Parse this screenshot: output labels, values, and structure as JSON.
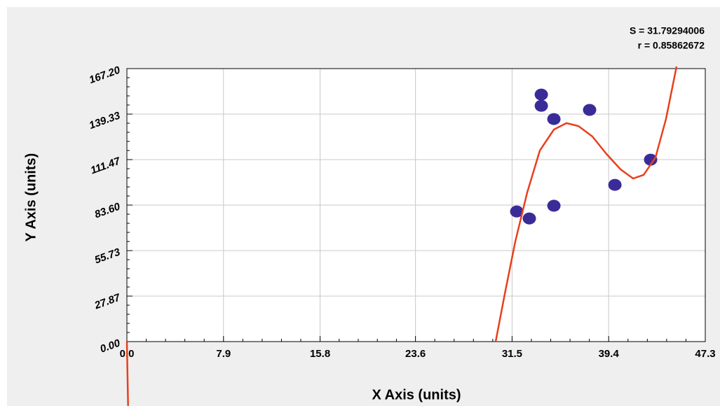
{
  "chart_data": {
    "type": "scatter",
    "annotations": [
      "S = 31.79294006",
      "r = 0.85862672"
    ],
    "x_label": "X Axis (units)",
    "y_label": "Y Axis (units)",
    "xlim": [
      0,
      47.3
    ],
    "ylim": [
      0,
      167.2
    ],
    "xticks": [
      {
        "value": 0,
        "label": "0.0"
      },
      7.9,
      15.8,
      23.6,
      31.5,
      39.4,
      47.3
    ],
    "yticks": [
      {
        "value": 0,
        "label": "0.00"
      },
      27.87,
      55.73,
      {
        "value": 83.6,
        "label": "83.60"
      },
      111.47,
      139.33,
      {
        "value": 167.2,
        "label": "167.20"
      }
    ],
    "grid": true,
    "series": [
      {
        "type": "scatter",
        "color": "#3a2c98",
        "x": [
          31.88,
          32.91,
          33.89,
          33.89,
          34.92,
          34.92,
          37.84,
          39.91,
          42.83
        ],
        "values": [
          79.7,
          75.4,
          151.3,
          144.4,
          136.3,
          83.2,
          141.9,
          96.0,
          111.4
        ]
      },
      {
        "type": "line",
        "color": "#e8401c",
        "x": [
          0,
          0.1,
          null,
          30.16,
          30.9,
          31.76,
          32.74,
          33.77,
          34.92,
          35.95,
          36.93,
          38.07,
          39.22,
          40.37,
          41.4,
          42.26,
          43.23,
          44.09,
          44.95
        ],
        "values": [
          0,
          -39.4,
          null,
          0,
          29.15,
          61.3,
          91.3,
          117.0,
          129.9,
          133.8,
          132.0,
          125.6,
          114.9,
          105.5,
          99.9,
          102.1,
          112.8,
          136.4,
          168.5
        ]
      }
    ]
  }
}
